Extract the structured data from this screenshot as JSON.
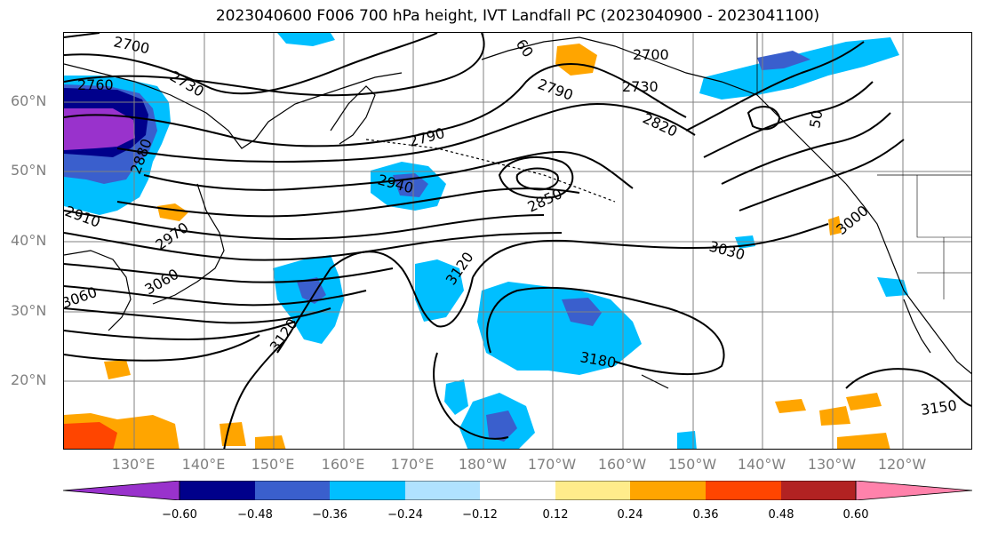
{
  "title": "2023040600 F006 700 hPa height, IVT Landfall PC (2023040900 - 2023041100)",
  "lat_labels": [
    "60°N",
    "50°N",
    "40°N",
    "30°N",
    "20°N"
  ],
  "lon_labels": [
    "130°E",
    "140°E",
    "150°E",
    "160°E",
    "170°E",
    "180°W",
    "170°W",
    "160°W",
    "150°W",
    "140°W",
    "130°W",
    "120°W"
  ],
  "contour_labels": [
    "2700",
    "2760",
    "2730",
    "2880",
    "2790",
    "2940",
    "2850",
    "2820",
    "2700",
    "2730",
    "2790",
    "60",
    "50",
    "3000",
    "3030",
    "3120",
    "3180",
    "3150",
    "3120",
    "2970",
    "3060",
    "3060",
    "2910",
    "3030"
  ],
  "colorbar": {
    "tick_labels": [
      "−0.60",
      "−0.48",
      "−0.36",
      "−0.24",
      "−0.12",
      "0.12",
      "0.24",
      "0.36",
      "0.48",
      "0.60"
    ],
    "colors": [
      "#9932cc",
      "#00008b",
      "#3a5fcd",
      "#00bfff",
      "#b0e2ff",
      "#ffffff",
      "#ffec8b",
      "#ffa500",
      "#ff4500",
      "#b22222",
      "#ff82ab"
    ]
  },
  "colors": {
    "gridline": "#808080",
    "contour": "#000000",
    "land_outline": "#000000"
  }
}
